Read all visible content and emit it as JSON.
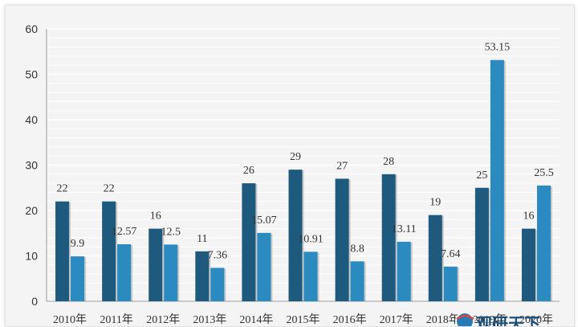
{
  "chart_data": {
    "type": "bar",
    "categories": [
      "2010年",
      "2011年",
      "2012年",
      "2013年",
      "2014年",
      "2015年",
      "2016年",
      "2017年",
      "2018年",
      "2019年",
      "2020年"
    ],
    "series": [
      {
        "values": [
          22,
          22,
          16,
          11,
          26,
          29,
          27,
          28,
          19,
          25,
          16
        ],
        "labels": [
          "22",
          "22",
          "16",
          "11",
          "26",
          "29",
          "27",
          "28",
          "19",
          "25",
          "16"
        ],
        "color": "#1d5a7e"
      },
      {
        "values": [
          9.9,
          12.57,
          12.5,
          7.36,
          15.07,
          10.91,
          8.8,
          13.11,
          7.64,
          53.15,
          25.5
        ],
        "labels": [
          "9.9",
          "12.57",
          "12.5",
          "7.36",
          "15.07",
          "10.91",
          "8.8",
          "13.11",
          "7.64",
          "53.15",
          "25.5"
        ],
        "color": "#2b8ac0"
      }
    ],
    "title": "",
    "xlabel": "",
    "ylabel": "",
    "ylim": [
      0,
      60
    ],
    "yticks": [
      "0",
      "10",
      "20",
      "30",
      "40",
      "50",
      "60"
    ],
    "grid": true,
    "legend": "none"
  },
  "watermark": {
    "text": "观研天下",
    "icon": "globe-logo-icon"
  }
}
